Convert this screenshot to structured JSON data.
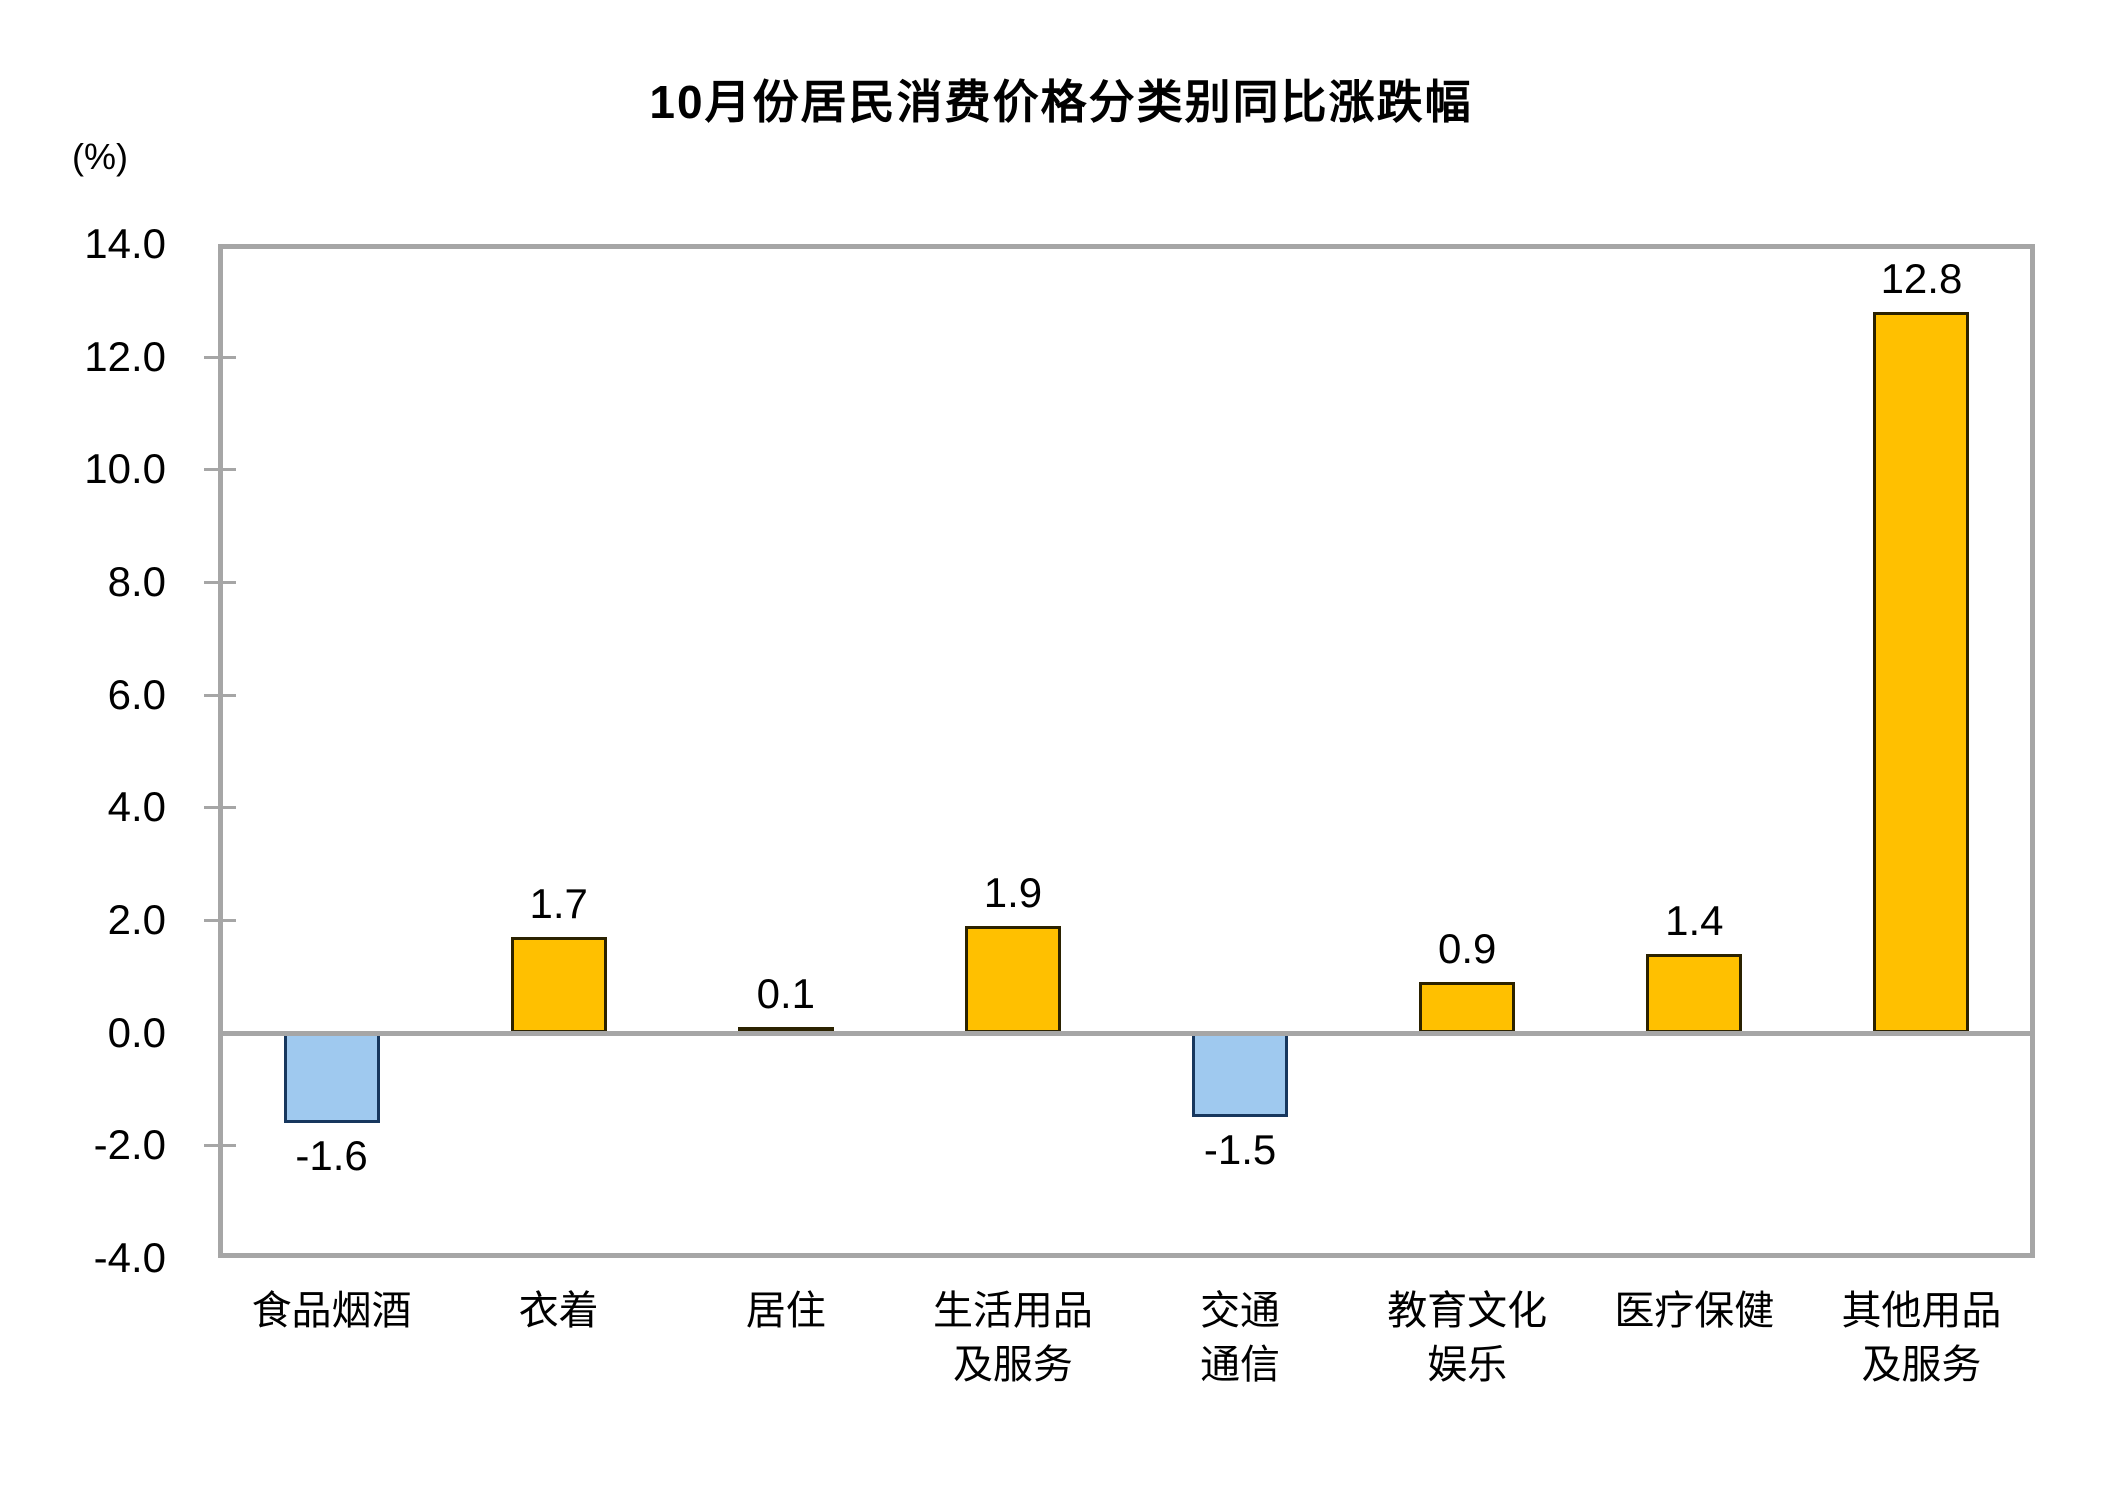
{
  "chart_data": {
    "type": "bar",
    "title": "10月份居民消费价格分类别同比涨跌幅",
    "unit_label": "(%)",
    "categories": [
      "食品烟酒",
      "衣着",
      "居住",
      "生活用品\n及服务",
      "交通\n通信",
      "教育文化\n娱乐",
      "医疗保健",
      "其他用品\n及服务"
    ],
    "values": [
      -1.6,
      1.7,
      0.1,
      1.9,
      -1.5,
      0.9,
      1.4,
      12.8
    ],
    "data_labels": [
      "-1.6",
      "1.7",
      "0.1",
      "1.9",
      "-1.5",
      "0.9",
      "1.4",
      "12.8"
    ],
    "xlabel": "",
    "ylabel": "(%)",
    "ylim": [
      -4.0,
      14.0
    ],
    "ytick_step": 2.0,
    "yticks": [
      "14.0",
      "12.0",
      "10.0",
      "8.0",
      "6.0",
      "4.0",
      "2.0",
      "0.0",
      "-2.0",
      "-4.0"
    ],
    "grid": "off",
    "legend": "none",
    "colors": {
      "positive_fill": "#FFC000",
      "positive_border": "#2B2200",
      "negative_fill": "#9FC9EF",
      "negative_border": "#17375E",
      "axis": "#A6A6A6",
      "text": "#000000"
    }
  }
}
